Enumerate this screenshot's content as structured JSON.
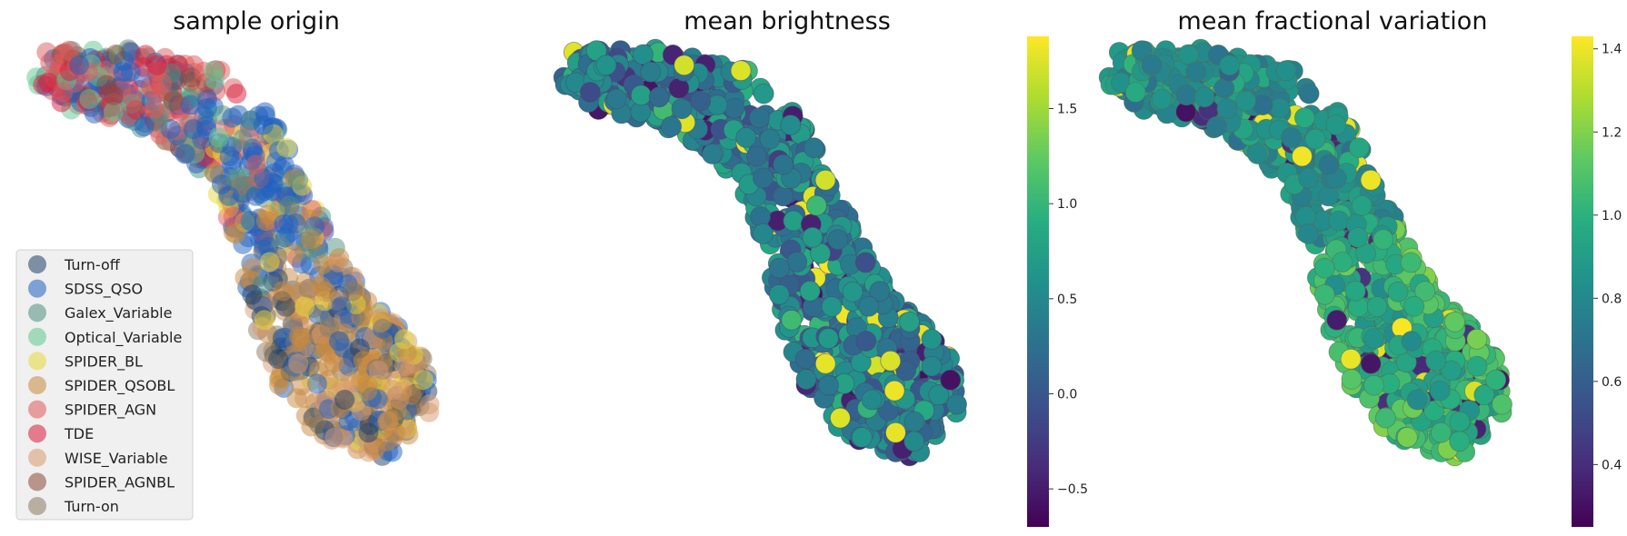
{
  "chart_data": [
    {
      "type": "scatter",
      "title": "sample origin",
      "xlabel": "",
      "ylabel": "",
      "axes": "off",
      "legend_position": "lower-left",
      "categories": [
        "Turn-off",
        "SDSS_QSO",
        "Galex_Variable",
        "Optical_Variable",
        "SPIDER_BL",
        "SPIDER_QSOBL",
        "SPIDER_AGN",
        "TDE",
        "WISE_Variable",
        "SPIDER_AGNBL",
        "Turn-on"
      ],
      "colors": [
        "#1f3f66",
        "#1f5fbf",
        "#4f8f7f",
        "#5fc88f",
        "#e8d83a",
        "#c88a40",
        "#e05a5a",
        "#d81b3b",
        "#d89a70",
        "#8a4a3a",
        "#8a7a60"
      ],
      "marker_alpha": 0.5,
      "note": "points form a curved band from upper-left down to lower-right; embedding coordinates are unlabeled"
    },
    {
      "type": "scatter",
      "title": "mean brightness",
      "xlabel": "",
      "ylabel": "",
      "axes": "off",
      "colormap": "viridis",
      "colorbar": {
        "min": -0.7,
        "max": 1.88,
        "ticks": [
          -0.5,
          0.0,
          0.5,
          1.0,
          1.5
        ],
        "tick_labels": [
          "−0.5",
          "0.0",
          "0.5",
          "1.0",
          "1.5"
        ]
      }
    },
    {
      "type": "scatter",
      "title": "mean fractional variation",
      "xlabel": "",
      "ylabel": "",
      "axes": "off",
      "colormap": "viridis",
      "colorbar": {
        "min": 0.25,
        "max": 1.43,
        "ticks": [
          0.4,
          0.6,
          0.8,
          1.0,
          1.2,
          1.4
        ],
        "tick_labels": [
          "0.4",
          "0.6",
          "0.8",
          "1.0",
          "1.2",
          "1.4"
        ]
      }
    }
  ]
}
